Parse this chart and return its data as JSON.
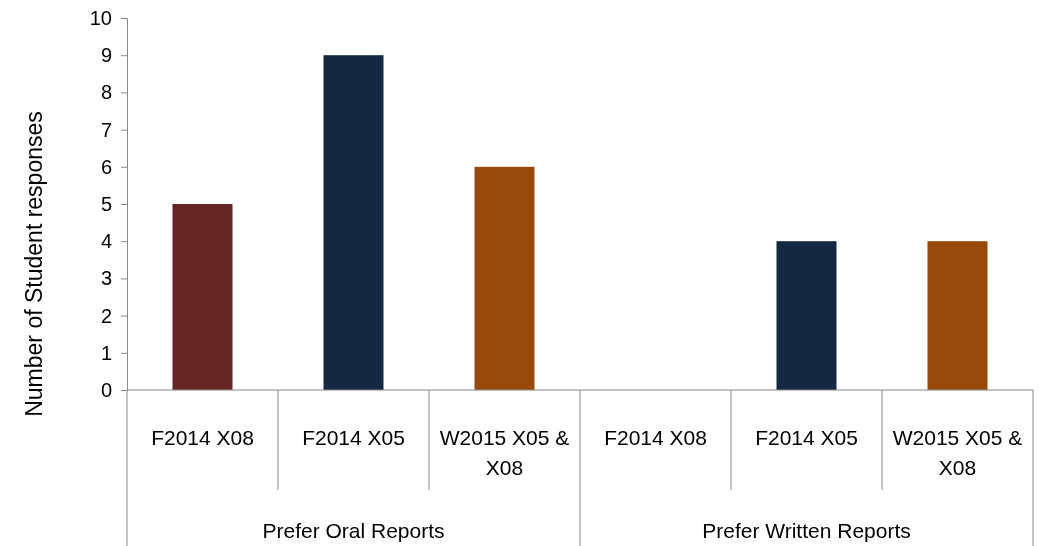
{
  "chart_data": {
    "type": "bar",
    "ylabel": "Number of Student responses",
    "categories": [
      "F2014 X08",
      "F2014 X05",
      "W2015 X05 & X08",
      "F2014 X08",
      "F2014 X05",
      "W2015 X05 & X08"
    ],
    "values": [
      5,
      9,
      6,
      0,
      4,
      4
    ],
    "colors": [
      "#652525",
      "#142842",
      "#974a0b",
      "#652525",
      "#142842",
      "#974a0b"
    ],
    "ylim": [
      0,
      10
    ],
    "yticks": [
      0,
      1,
      2,
      3,
      4,
      5,
      6,
      7,
      8,
      9,
      10
    ],
    "annotations": [
      "Prefer Oral Reports",
      "Prefer Written Reports"
    ],
    "grid": false
  }
}
